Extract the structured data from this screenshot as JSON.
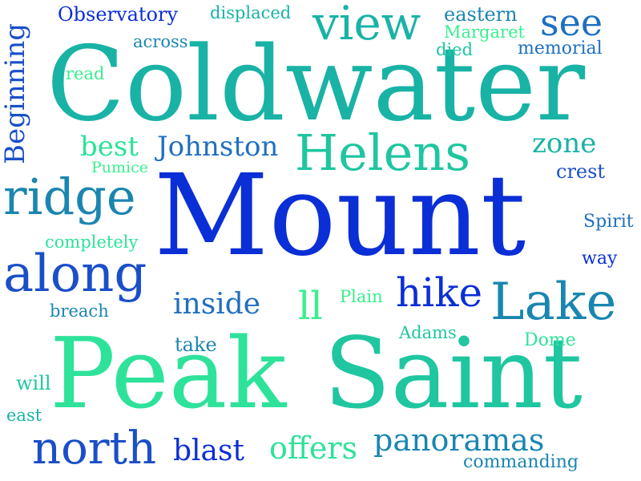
{
  "words": {
    "mount": "Mount",
    "coldwater": "Coldwater",
    "peak": "Peak",
    "saint": "Saint",
    "helens": "Helens",
    "lake": "Lake",
    "along": "along",
    "ridge": "ridge",
    "north": "north",
    "view": "view",
    "see": "see",
    "hike": "hike",
    "panoramas": "panoramas",
    "offers": "offers",
    "inside": "inside",
    "blast": "blast",
    "johnston": "Johnston",
    "best": "best",
    "zone": "zone",
    "crest": "crest",
    "beginning": "Beginning",
    "observatory": "Observatory",
    "displaced": "displaced",
    "eastern": "eastern",
    "margaret": "Margaret",
    "died": "died",
    "memorial": "memorial",
    "across": "across",
    "read": "read",
    "pumice": "Pumice",
    "completely": "completely",
    "spirit": "Spirit",
    "way": "way",
    "plain": "Plain",
    "ll": "ll",
    "breach": "breach",
    "adams": "Adams",
    "dome": "Dome",
    "take": "take",
    "will": "will",
    "east": "east",
    "commanding": "commanding"
  },
  "colors": {
    "deep_blue": "#0b2fd6",
    "royal_blue": "#1a4fc8",
    "mid_blue": "#1f6fc0",
    "teal_blue": "#1a86b0",
    "teal": "#19b3a6",
    "teal_green": "#1fc6a0",
    "green": "#2ee29a",
    "light_green": "#39ef8e"
  }
}
